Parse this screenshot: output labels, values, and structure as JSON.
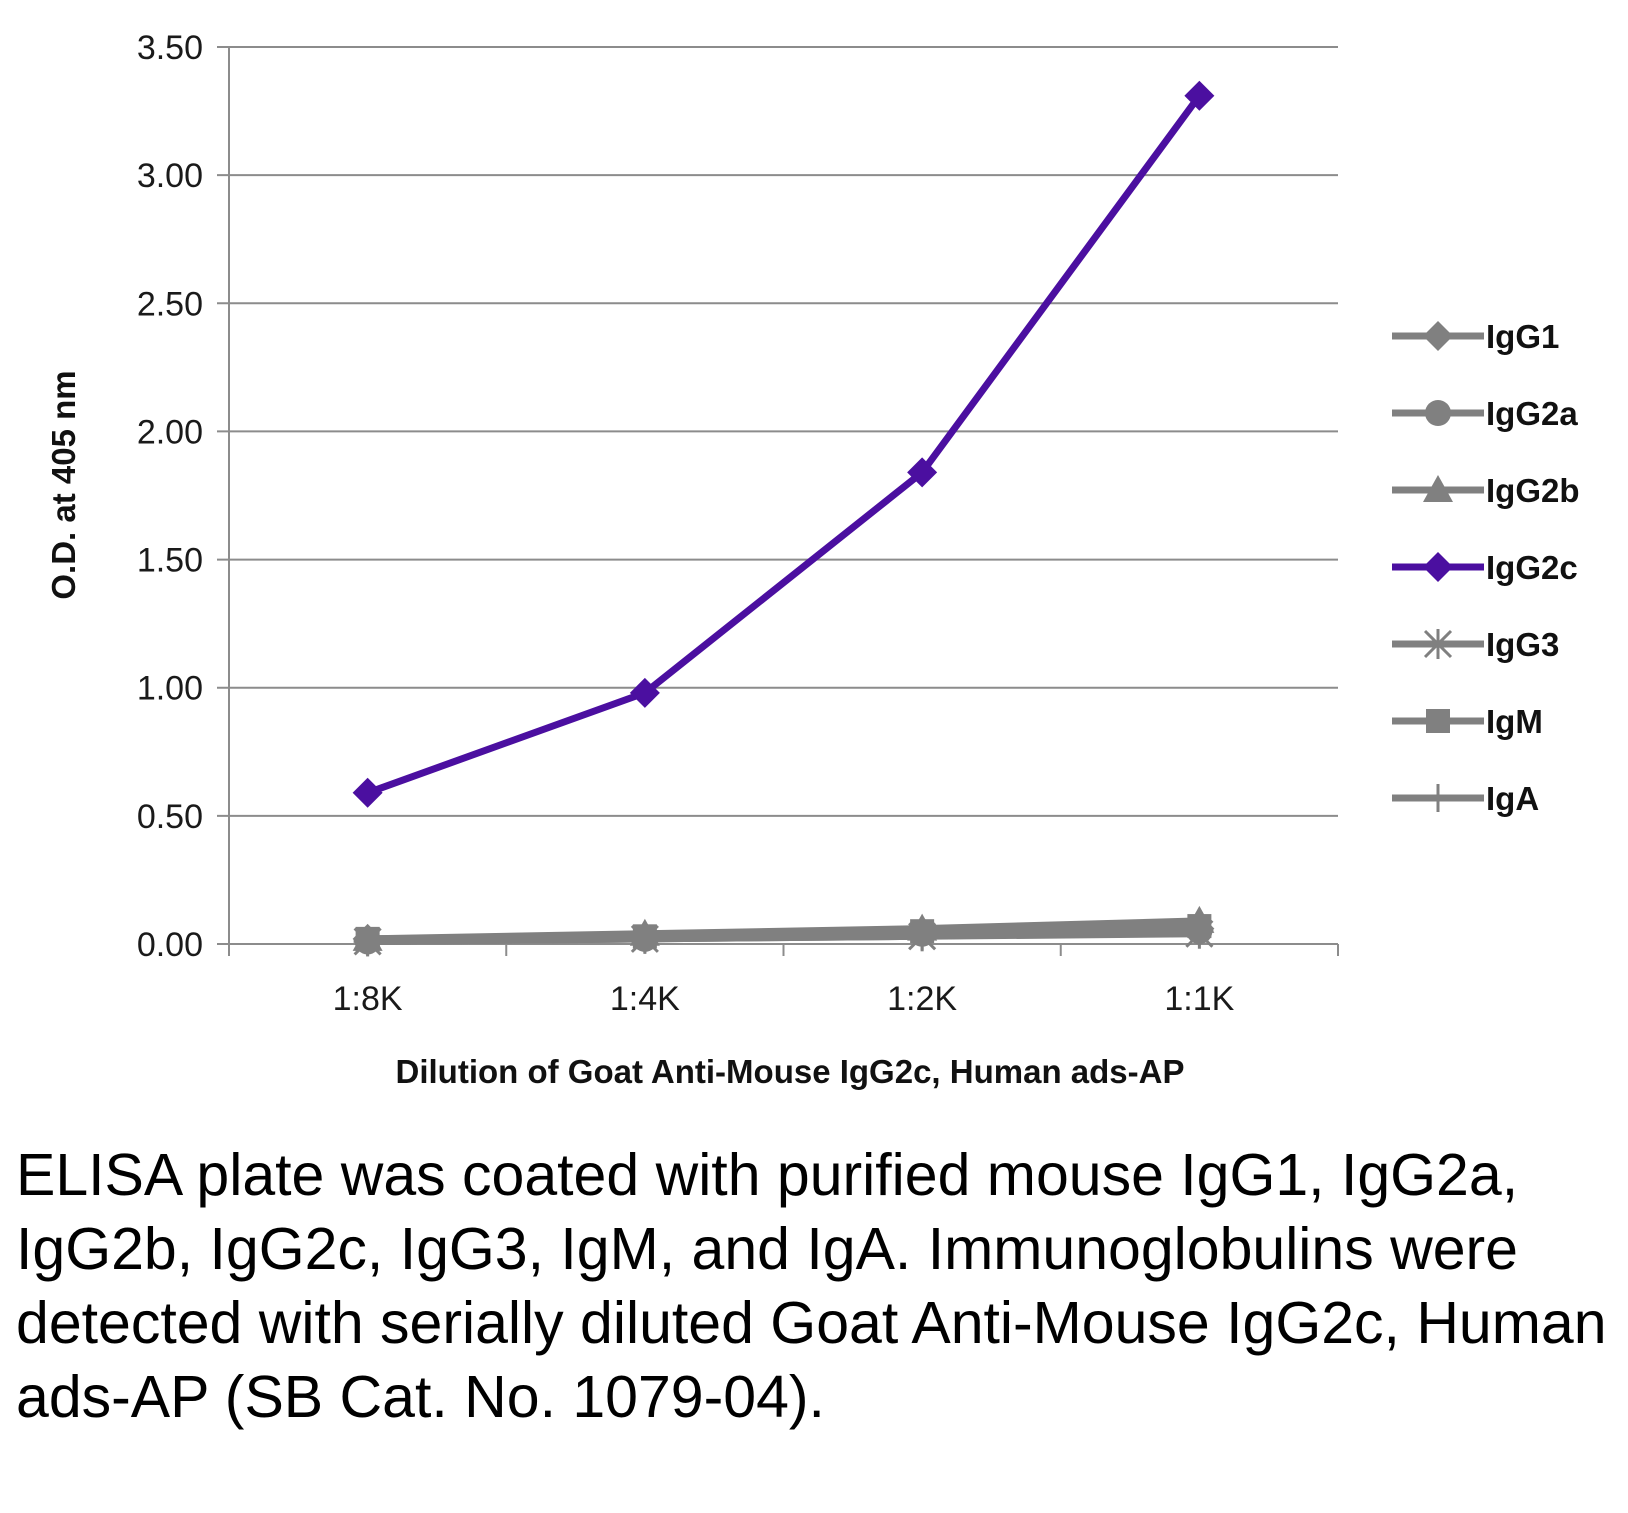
{
  "chart_data": {
    "type": "line",
    "categories": [
      "1:8K",
      "1:4K",
      "1:2K",
      "1:1K"
    ],
    "ylabel": "O.D. at 405 nm",
    "xlabel": "Dilution of Goat Anti-Mouse IgG2c, Human ads-AP",
    "ylim": [
      0,
      3.5
    ],
    "yticks": [
      "0.00",
      "0.50",
      "1.00",
      "1.50",
      "2.00",
      "2.50",
      "3.00",
      "3.50"
    ],
    "grid": "horizontal",
    "legend_position": "right",
    "series": [
      {
        "name": "IgG1",
        "marker": "diamond",
        "color": "#808080",
        "values": [
          0.02,
          0.03,
          0.05,
          0.06
        ]
      },
      {
        "name": "IgG2a",
        "marker": "circle",
        "color": "#808080",
        "values": [
          0.01,
          0.02,
          0.04,
          0.05
        ]
      },
      {
        "name": "IgG2b",
        "marker": "triangle",
        "color": "#808080",
        "values": [
          0.02,
          0.04,
          0.06,
          0.09
        ]
      },
      {
        "name": "IgG2c",
        "marker": "diamond",
        "color": "#4b0fa0",
        "values": [
          0.59,
          0.98,
          1.84,
          3.31
        ]
      },
      {
        "name": "IgG3",
        "marker": "star",
        "color": "#808080",
        "values": [
          0.01,
          0.02,
          0.03,
          0.04
        ]
      },
      {
        "name": "IgM",
        "marker": "square",
        "color": "#808080",
        "values": [
          0.02,
          0.03,
          0.05,
          0.07
        ]
      },
      {
        "name": "IgA",
        "marker": "plus",
        "color": "#808080",
        "values": [
          0.01,
          0.02,
          0.03,
          0.05
        ]
      }
    ]
  },
  "caption": "ELISA plate was coated with purified mouse IgG1, IgG2a, IgG2b, IgG2c, IgG3, IgM, and IgA.  Immunoglobulins were detected with serially diluted Goat Anti-Mouse IgG2c, Human ads-AP (SB Cat. No. 1079-04)."
}
